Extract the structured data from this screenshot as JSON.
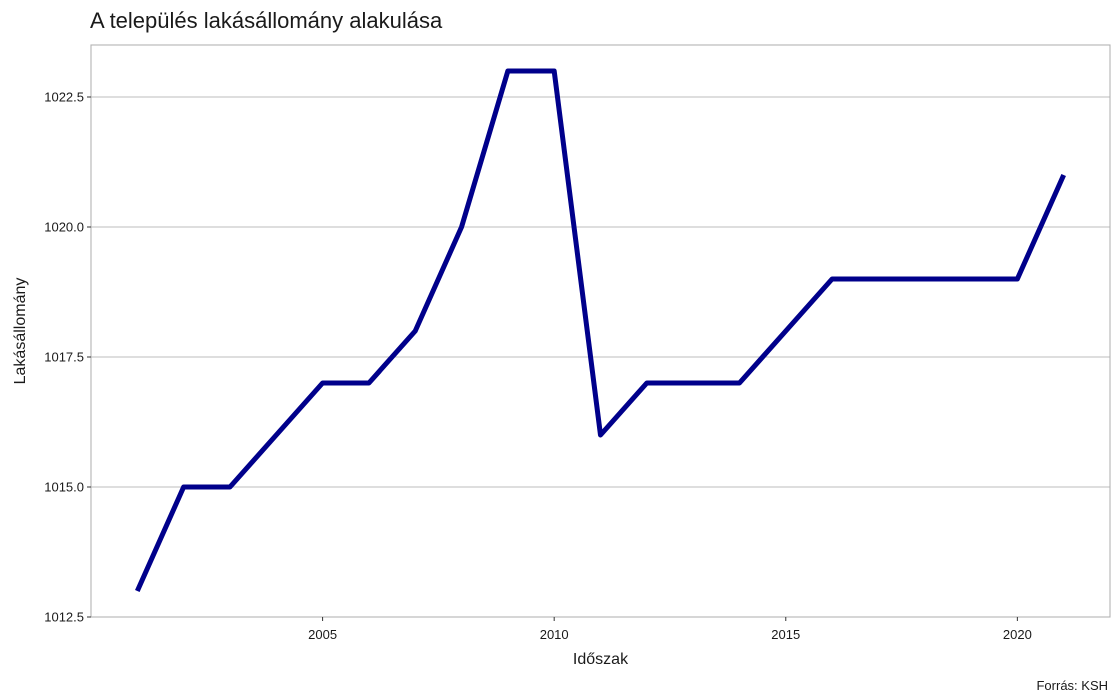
{
  "chart_data": {
    "type": "line",
    "title": "A település lakásállomány alakulása",
    "xlabel": "Időszak",
    "ylabel": "Lakásállomány",
    "caption": "Forrás: KSH",
    "x": [
      2001,
      2002,
      2003,
      2004,
      2005,
      2006,
      2007,
      2008,
      2009,
      2010,
      2011,
      2012,
      2013,
      2014,
      2015,
      2016,
      2017,
      2018,
      2019,
      2020,
      2021
    ],
    "series": [
      {
        "values": [
          1013,
          1015,
          1015,
          1016,
          1017,
          1017,
          1018,
          1020,
          1023,
          1023,
          1016,
          1017,
          1017,
          1017,
          1018,
          1019,
          1019,
          1019,
          1019,
          1019,
          1021
        ],
        "color": "#00008b"
      }
    ],
    "xlim": [
      2000,
      2022
    ],
    "ylim": [
      1012.5,
      1023.5
    ],
    "xticks": [
      2005,
      2010,
      2015,
      2020
    ],
    "xtick_labels": [
      "2005",
      "2010",
      "2015",
      "2020"
    ],
    "yticks": [
      1012.5,
      1015.0,
      1017.5,
      1020.0,
      1022.5
    ],
    "ytick_labels": [
      "1012.5",
      "1015.0",
      "1017.5",
      "1020.0",
      "1022.5"
    ],
    "grid": "horizontal",
    "legend": "none"
  }
}
